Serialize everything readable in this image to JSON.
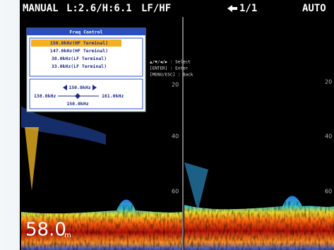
{
  "status_bar": {
    "mode": "MANUAL",
    "gain": "L:2.6/H:6.1",
    "frequency": "LF/HF",
    "page": "1/1",
    "range_mode": "AUTO"
  },
  "menu": {
    "title": "Freq Control",
    "items": [
      "150.0kHz(HF Terminal)",
      "147.0kHz(HF Terminal)",
      "38.0kHz(LF Terminal)",
      "33.0kHz(LF Terminal)"
    ],
    "slider": {
      "value": "150.0kHz",
      "min": "138.0kHz",
      "max": "161.0kHz",
      "current": "150.0kHz"
    }
  },
  "help": [
    "▲/▼/◀/▶ : Select",
    "[ENTER]   : Enter",
    "[MENU/ESC] : Back"
  ],
  "left_scale": [
    "20",
    "40",
    "60"
  ],
  "right_scale": [
    "20",
    "40",
    "60"
  ],
  "depth": {
    "value": "58.0",
    "unit": "m"
  }
}
